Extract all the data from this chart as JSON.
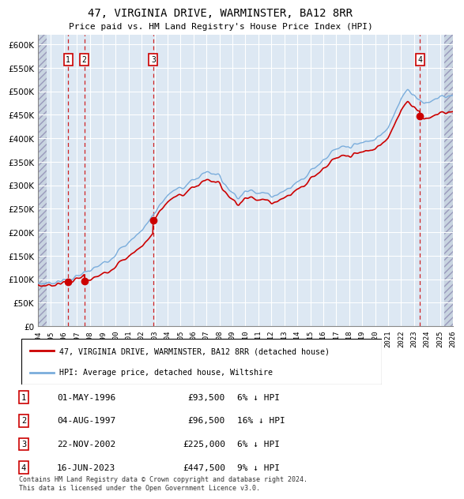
{
  "title": "47, VIRGINIA DRIVE, WARMINSTER, BA12 8RR",
  "subtitle": "Price paid vs. HM Land Registry's House Price Index (HPI)",
  "footer": "Contains HM Land Registry data © Crown copyright and database right 2024.\nThis data is licensed under the Open Government Licence v3.0.",
  "legend_line1": "47, VIRGINIA DRIVE, WARMINSTER, BA12 8RR (detached house)",
  "legend_line2": "HPI: Average price, detached house, Wiltshire",
  "transactions": [
    {
      "num": 1,
      "date": "01-MAY-1996",
      "price": 93500,
      "year": 1996.33,
      "pct": "6% ↓ HPI"
    },
    {
      "num": 2,
      "date": "04-AUG-1997",
      "price": 96500,
      "year": 1997.58,
      "pct": "16% ↓ HPI"
    },
    {
      "num": 3,
      "date": "22-NOV-2002",
      "price": 225000,
      "year": 2002.89,
      "pct": "6% ↓ HPI"
    },
    {
      "num": 4,
      "date": "16-JUN-2023",
      "price": 447500,
      "year": 2023.45,
      "pct": "9% ↓ HPI"
    }
  ],
  "hpi_color": "#7aaddc",
  "price_color": "#cc0000",
  "vline_color": "#cc0000",
  "plot_bg": "#dde8f3",
  "grid_color": "#ffffff",
  "ylim": [
    0,
    620000
  ],
  "yticks": [
    0,
    50000,
    100000,
    150000,
    200000,
    250000,
    300000,
    350000,
    400000,
    450000,
    500000,
    550000,
    600000
  ],
  "xlim_start": 1994,
  "xlim_end": 2026,
  "xticks": [
    1994,
    1995,
    1996,
    1997,
    1998,
    1999,
    2000,
    2001,
    2002,
    2003,
    2004,
    2005,
    2006,
    2007,
    2008,
    2009,
    2010,
    2011,
    2012,
    2013,
    2014,
    2015,
    2016,
    2017,
    2018,
    2019,
    2020,
    2021,
    2022,
    2023,
    2024,
    2025,
    2026
  ]
}
